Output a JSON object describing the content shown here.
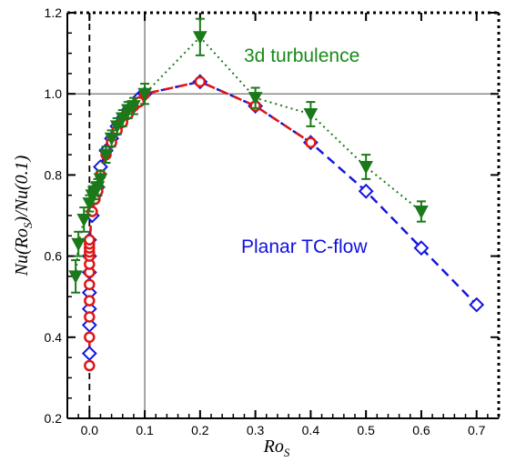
{
  "chart_data": {
    "type": "scatter",
    "xlabel": "Ro_S",
    "ylabel": "Nu(Ro_S)/Nu(0.1)",
    "xlim": [
      -0.04,
      0.74
    ],
    "ylim": [
      0.2,
      1.2
    ],
    "xticks": [
      0.0,
      0.1,
      0.2,
      0.3,
      0.4,
      0.5,
      0.6,
      0.7
    ],
    "yticks": [
      0.2,
      0.4,
      0.6,
      0.8,
      1.0,
      1.2
    ],
    "xtick_labels": [
      "0.0",
      "0.1",
      "0.2",
      "0.3",
      "0.4",
      "0.5",
      "0.6",
      "0.7"
    ],
    "ytick_labels": [
      "0.2",
      "0.4",
      "0.6",
      "0.8",
      "1.0",
      "1.2"
    ],
    "reference_lines": {
      "vertical_solid_x": 0.1,
      "vertical_dashed_x": 0.0,
      "horizontal_solid_y": 1.0
    },
    "annotations": [
      {
        "text": "3d turbulence",
        "color": "#1a8a1a"
      },
      {
        "text": "Planar TC-flow",
        "color": "#1010e0"
      }
    ],
    "series": [
      {
        "marker": "triangle-down",
        "color": "#1a7a1a",
        "line": "dotted",
        "x": [
          -0.025,
          -0.02,
          -0.01,
          0.0,
          0.005,
          0.01,
          0.015,
          0.02,
          0.03,
          0.04,
          0.05,
          0.06,
          0.07,
          0.08,
          0.1,
          0.2,
          0.3,
          0.4,
          0.5,
          0.6
        ],
        "y": [
          0.55,
          0.63,
          0.69,
          0.73,
          0.75,
          0.76,
          0.77,
          0.79,
          0.85,
          0.89,
          0.92,
          0.94,
          0.96,
          0.97,
          1.0,
          1.14,
          0.99,
          0.95,
          0.82,
          0.71
        ],
        "err": [
          0.04,
          0.03,
          0.03,
          0.02,
          0.02,
          0.02,
          0.02,
          0.02,
          0.02,
          0.02,
          0.02,
          0.02,
          0.02,
          0.02,
          0.025,
          0.045,
          0.025,
          0.03,
          0.03,
          0.025
        ]
      },
      {
        "marker": "diamond",
        "color": "#1515e0",
        "line": "dashed",
        "x": [
          0.0,
          0.0,
          0.0,
          0.0,
          0.0,
          0.0,
          0.0,
          0.005,
          0.01,
          0.015,
          0.02,
          0.03,
          0.04,
          0.05,
          0.06,
          0.07,
          0.08,
          0.09,
          0.1,
          0.2,
          0.3,
          0.4,
          0.5,
          0.6,
          0.7
        ],
        "y": [
          0.36,
          0.43,
          0.47,
          0.51,
          0.56,
          0.6,
          0.64,
          0.7,
          0.75,
          0.77,
          0.82,
          0.86,
          0.89,
          0.92,
          0.94,
          0.96,
          0.97,
          0.99,
          1.0,
          1.03,
          0.97,
          0.88,
          0.76,
          0.62,
          0.48
        ]
      },
      {
        "marker": "circle",
        "color": "#e01515",
        "line": "dashed",
        "x": [
          0.0,
          0.0,
          0.0,
          0.0,
          0.0,
          0.0,
          0.0,
          0.0,
          0.0,
          0.0,
          0.0,
          0.0,
          0.005,
          0.01,
          0.015,
          0.02,
          0.03,
          0.04,
          0.05,
          0.06,
          0.07,
          0.08,
          0.09,
          0.1,
          0.2,
          0.3,
          0.4
        ],
        "y": [
          0.33,
          0.4,
          0.45,
          0.49,
          0.53,
          0.56,
          0.58,
          0.6,
          0.61,
          0.62,
          0.63,
          0.64,
          0.71,
          0.74,
          0.76,
          0.8,
          0.85,
          0.88,
          0.91,
          0.93,
          0.95,
          0.97,
          0.98,
          1.0,
          1.03,
          0.97,
          0.88
        ]
      }
    ]
  }
}
